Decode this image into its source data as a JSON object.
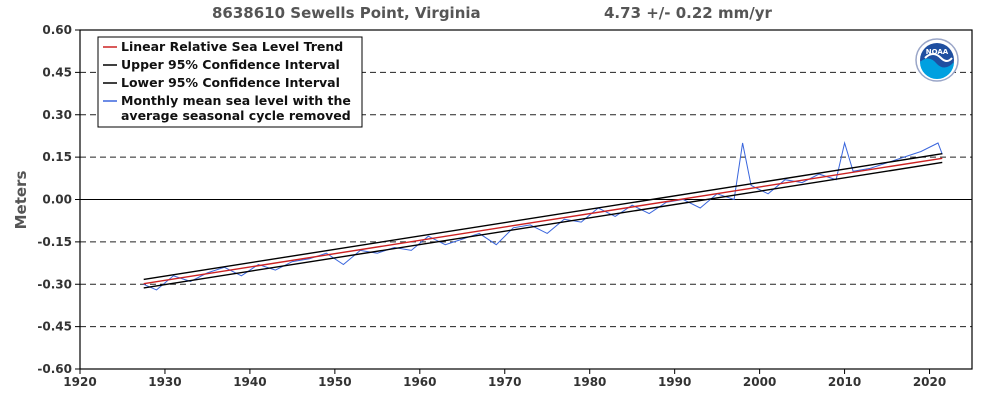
{
  "title": {
    "station": "8638610 Sewells Point, Virginia",
    "trend": "4.73 +/-  0.22 mm/yr"
  },
  "chart_data": {
    "type": "line",
    "ylabel": "Meters",
    "xlim": [
      1920,
      2025
    ],
    "ylim": [
      -0.6,
      0.6
    ],
    "x_ticks": [
      "1920",
      "1930",
      "1940",
      "1950",
      "1960",
      "1970",
      "1980",
      "1990",
      "2000",
      "2010",
      "2020"
    ],
    "x_tick_values": [
      1920,
      1930,
      1940,
      1950,
      1960,
      1970,
      1980,
      1990,
      2000,
      2010,
      2020
    ],
    "y_ticks": [
      "0.60",
      "0.45",
      "0.30",
      "0.15",
      "0.00",
      "-0.15",
      "-0.30",
      "-0.45",
      "-0.60"
    ],
    "y_tick_values": [
      0.6,
      0.45,
      0.3,
      0.15,
      0.0,
      -0.15,
      -0.3,
      -0.45,
      -0.6
    ],
    "grid": "horizontal dashed",
    "legend_position": "top-left",
    "series": [
      {
        "name": "Linear Relative Sea Level Trend",
        "color": "#cc2222",
        "x": [
          1927.5,
          2021.5
        ],
        "y": [
          -0.298,
          0.146
        ]
      },
      {
        "name": "Upper 95% Confidence Interval",
        "color": "#000000",
        "x": [
          1927.5,
          2021.5
        ],
        "y": [
          -0.283,
          0.162
        ]
      },
      {
        "name": "Lower 95% Confidence Interval",
        "color": "#000000",
        "x": [
          1927.5,
          2021.5
        ],
        "y": [
          -0.313,
          0.131
        ]
      },
      {
        "name": "Monthly mean sea level with the average seasonal cycle removed",
        "color": "#3a66dd",
        "x": [
          1927.5,
          1929,
          1931,
          1933,
          1935,
          1937,
          1939,
          1941,
          1943,
          1945,
          1947,
          1949,
          1951,
          1953,
          1955,
          1957,
          1959,
          1961,
          1963,
          1965,
          1967,
          1969,
          1971,
          1973,
          1975,
          1977,
          1979,
          1981,
          1983,
          1985,
          1987,
          1989,
          1991,
          1993,
          1995,
          1997,
          1998,
          1999,
          2001,
          2003,
          2005,
          2007,
          2009,
          2010,
          2011,
          2013,
          2015,
          2017,
          2019,
          2021,
          2021.5
        ],
        "y": [
          -0.3,
          -0.32,
          -0.27,
          -0.29,
          -0.26,
          -0.24,
          -0.27,
          -0.23,
          -0.25,
          -0.22,
          -0.21,
          -0.19,
          -0.23,
          -0.18,
          -0.19,
          -0.17,
          -0.18,
          -0.13,
          -0.16,
          -0.14,
          -0.12,
          -0.16,
          -0.1,
          -0.09,
          -0.12,
          -0.07,
          -0.08,
          -0.03,
          -0.06,
          -0.02,
          -0.05,
          -0.01,
          0.0,
          -0.03,
          0.02,
          0.0,
          0.2,
          0.05,
          0.02,
          0.07,
          0.06,
          0.09,
          0.07,
          0.2,
          0.1,
          0.11,
          0.13,
          0.15,
          0.17,
          0.2,
          0.16
        ]
      }
    ],
    "legend_lines": [
      [
        "Linear Relative Sea Level Trend"
      ],
      [
        "Upper 95% Confidence Interval"
      ],
      [
        "Lower 95% Confidence Interval"
      ],
      [
        "Monthly mean sea level with the",
        "average seasonal cycle removed"
      ]
    ]
  },
  "logo": {
    "text": "NOAA",
    "icon": "noaa-logo-icon"
  }
}
